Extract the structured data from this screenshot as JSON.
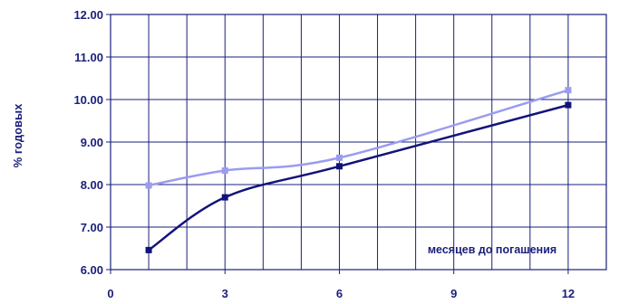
{
  "chart_data": {
    "type": "line",
    "ylabel": "% годовых",
    "annotation": "месяцев до погашения",
    "xlim": [
      0,
      13
    ],
    "ylim": [
      6.0,
      12.0
    ],
    "x_ticks": [
      0,
      3,
      6,
      9,
      12
    ],
    "x_tick_labels": [
      "0",
      "3",
      "6",
      "9",
      "12"
    ],
    "y_ticks": [
      6,
      7,
      8,
      9,
      10,
      11,
      12
    ],
    "y_tick_labels": [
      "6.00",
      "7.00",
      "8.00",
      "9.00",
      "10.00",
      "11.00",
      "12.00"
    ],
    "x_grid_step": 1,
    "grid": true,
    "series": [
      {
        "color": "#9a9cf0",
        "x": [
          1,
          3,
          6,
          12
        ],
        "values": [
          7.98,
          8.33,
          8.63,
          10.22
        ]
      },
      {
        "color": "#12137a",
        "x": [
          1,
          3,
          6,
          12
        ],
        "values": [
          6.46,
          7.7,
          8.43,
          9.87
        ]
      }
    ]
  }
}
